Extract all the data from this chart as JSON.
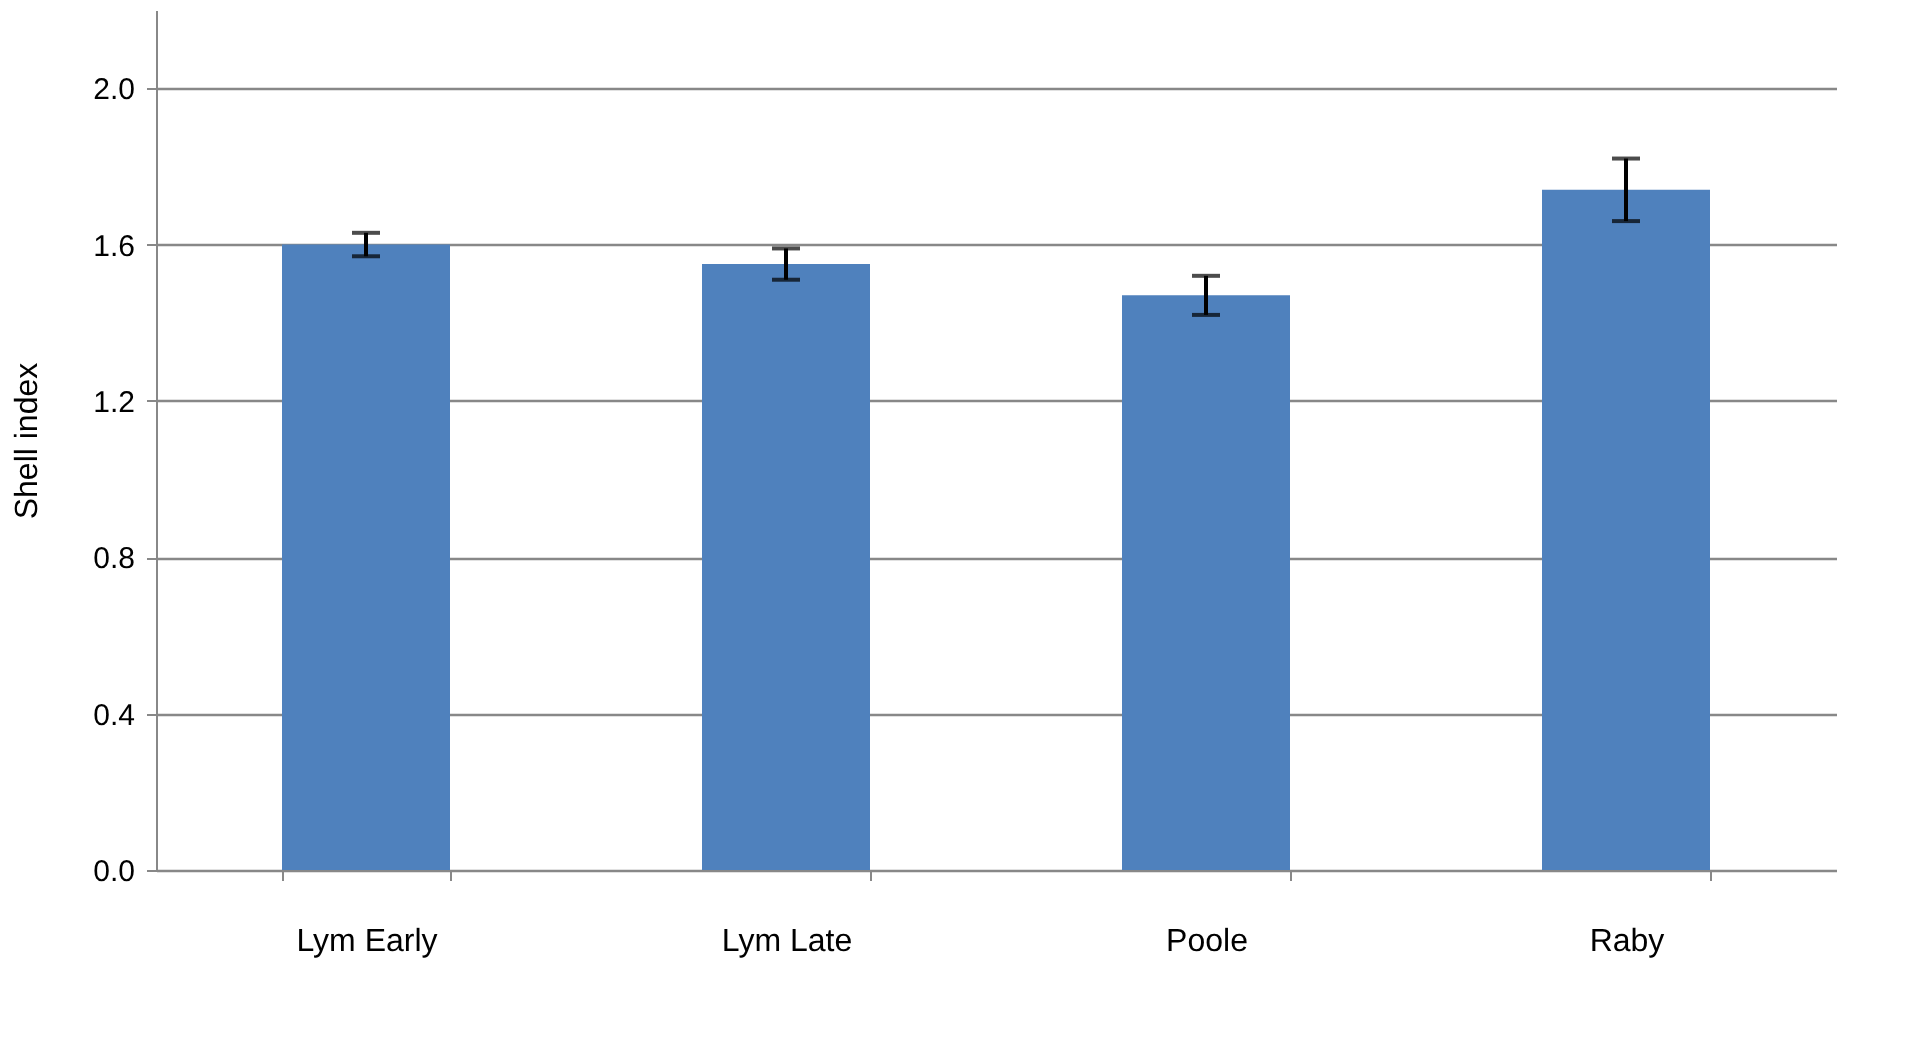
{
  "chart_data": {
    "type": "bar",
    "ylabel": "Shell index",
    "categories": [
      "Lym Early",
      "Lym Late",
      "Poole",
      "Raby"
    ],
    "values": [
      1.6,
      1.55,
      1.47,
      1.74
    ],
    "errors": [
      0.03,
      0.04,
      0.05,
      0.08
    ],
    "color": "#4f81bd",
    "ylim": [
      0,
      2.2
    ],
    "yticks": [
      {
        "value": 0,
        "label": "0.0"
      },
      0.4,
      0.8,
      1.2,
      1.6,
      {
        "value": 2,
        "label": "2.0"
      }
    ],
    "grid": "y"
  }
}
